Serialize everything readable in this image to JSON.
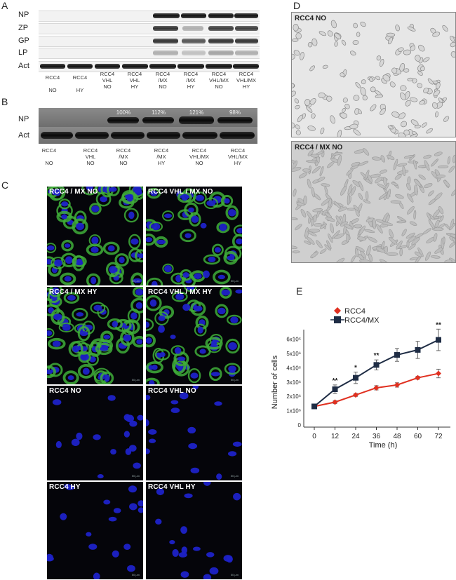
{
  "panel_labels": {
    "a": "A",
    "b": "B",
    "c": "C",
    "d": "D",
    "e": "E"
  },
  "panelA": {
    "rows": [
      "NP",
      "ZP",
      "GP",
      "LP",
      "Act"
    ],
    "lanes": [
      {
        "l1": "RCC4",
        "l2": "",
        "l3": "NO"
      },
      {
        "l1": "RCC4",
        "l2": "",
        "l3": "HY"
      },
      {
        "l1": "RCC4",
        "l2": "VHL",
        "l3": "NO"
      },
      {
        "l1": "RCC4",
        "l2": "VHL",
        "l3": "HY"
      },
      {
        "l1": "RCC4",
        "l2": "/MX",
        "l3": "NO"
      },
      {
        "l1": "RCC4",
        "l2": "/MX",
        "l3": "HY"
      },
      {
        "l1": "RCC4",
        "l2": "VHL/MX",
        "l3": "NO"
      },
      {
        "l1": "RCC4",
        "l2": "VHL/MX",
        "l3": "HY"
      }
    ]
  },
  "panelB": {
    "rows": [
      "NP",
      "Act"
    ],
    "percents": [
      "100%",
      "112%",
      "121%",
      "98%"
    ],
    "lanes": [
      {
        "l1": "RCC4",
        "l2": "",
        "l3": "NO"
      },
      {
        "l1": "RCC4",
        "l2": "VHL",
        "l3": "NO"
      },
      {
        "l1": "RCC4",
        "l2": "/MX",
        "l3": "NO"
      },
      {
        "l1": "RCC4",
        "l2": "/MX",
        "l3": "HY"
      },
      {
        "l1": "RCC4",
        "l2": "VHL/MX",
        "l3": "NO"
      },
      {
        "l1": "RCC4",
        "l2": "VHL/MX",
        "l3": "HY"
      }
    ]
  },
  "panelC": {
    "titles": [
      "RCC4 / MX NO",
      "RCC4 VHL / MX NO",
      "RCC4 / MX HY",
      "RCC4 VHL / MX HY",
      "RCC4 NO",
      "RCC4 VHL NO",
      "RCC4 HY",
      "RCC4 VHL HY"
    ]
  },
  "panelD": {
    "top": "RCC4 NO",
    "bottom": "RCC4 / MX NO"
  },
  "chart_data": {
    "type": "line",
    "x": [
      0,
      12,
      24,
      36,
      48,
      60,
      72
    ],
    "xlabel": "Time (h)",
    "ylabel": "Number of cells",
    "ytick_labels": [
      "0",
      "1x10⁶",
      "2x10⁶",
      "3x10⁶",
      "4x10⁶",
      "5x10⁶",
      "6x10⁶"
    ],
    "ylim": [
      0,
      6.9
    ],
    "legend_position": "top-left",
    "series": [
      {
        "name": "RCC4",
        "color": "#e03020",
        "marker": "diamond",
        "values": [
          1.3,
          1.6,
          2.1,
          2.6,
          2.8,
          3.3,
          3.6
        ],
        "errors": [
          0.1,
          0.1,
          0.1,
          0.15,
          0.15,
          0.1,
          0.3
        ]
      },
      {
        "name": "RCC4/MX",
        "color": "#1f2d45",
        "marker": "square",
        "values": [
          1.3,
          2.5,
          3.3,
          4.2,
          4.9,
          5.25,
          5.95
        ],
        "errors": [
          0.1,
          0.3,
          0.4,
          0.35,
          0.45,
          0.6,
          0.75
        ]
      }
    ],
    "significance": [
      {
        "x": 12,
        "label": "**"
      },
      {
        "x": 24,
        "label": "*"
      },
      {
        "x": 36,
        "label": "**"
      },
      {
        "x": 72,
        "label": "**"
      }
    ]
  }
}
